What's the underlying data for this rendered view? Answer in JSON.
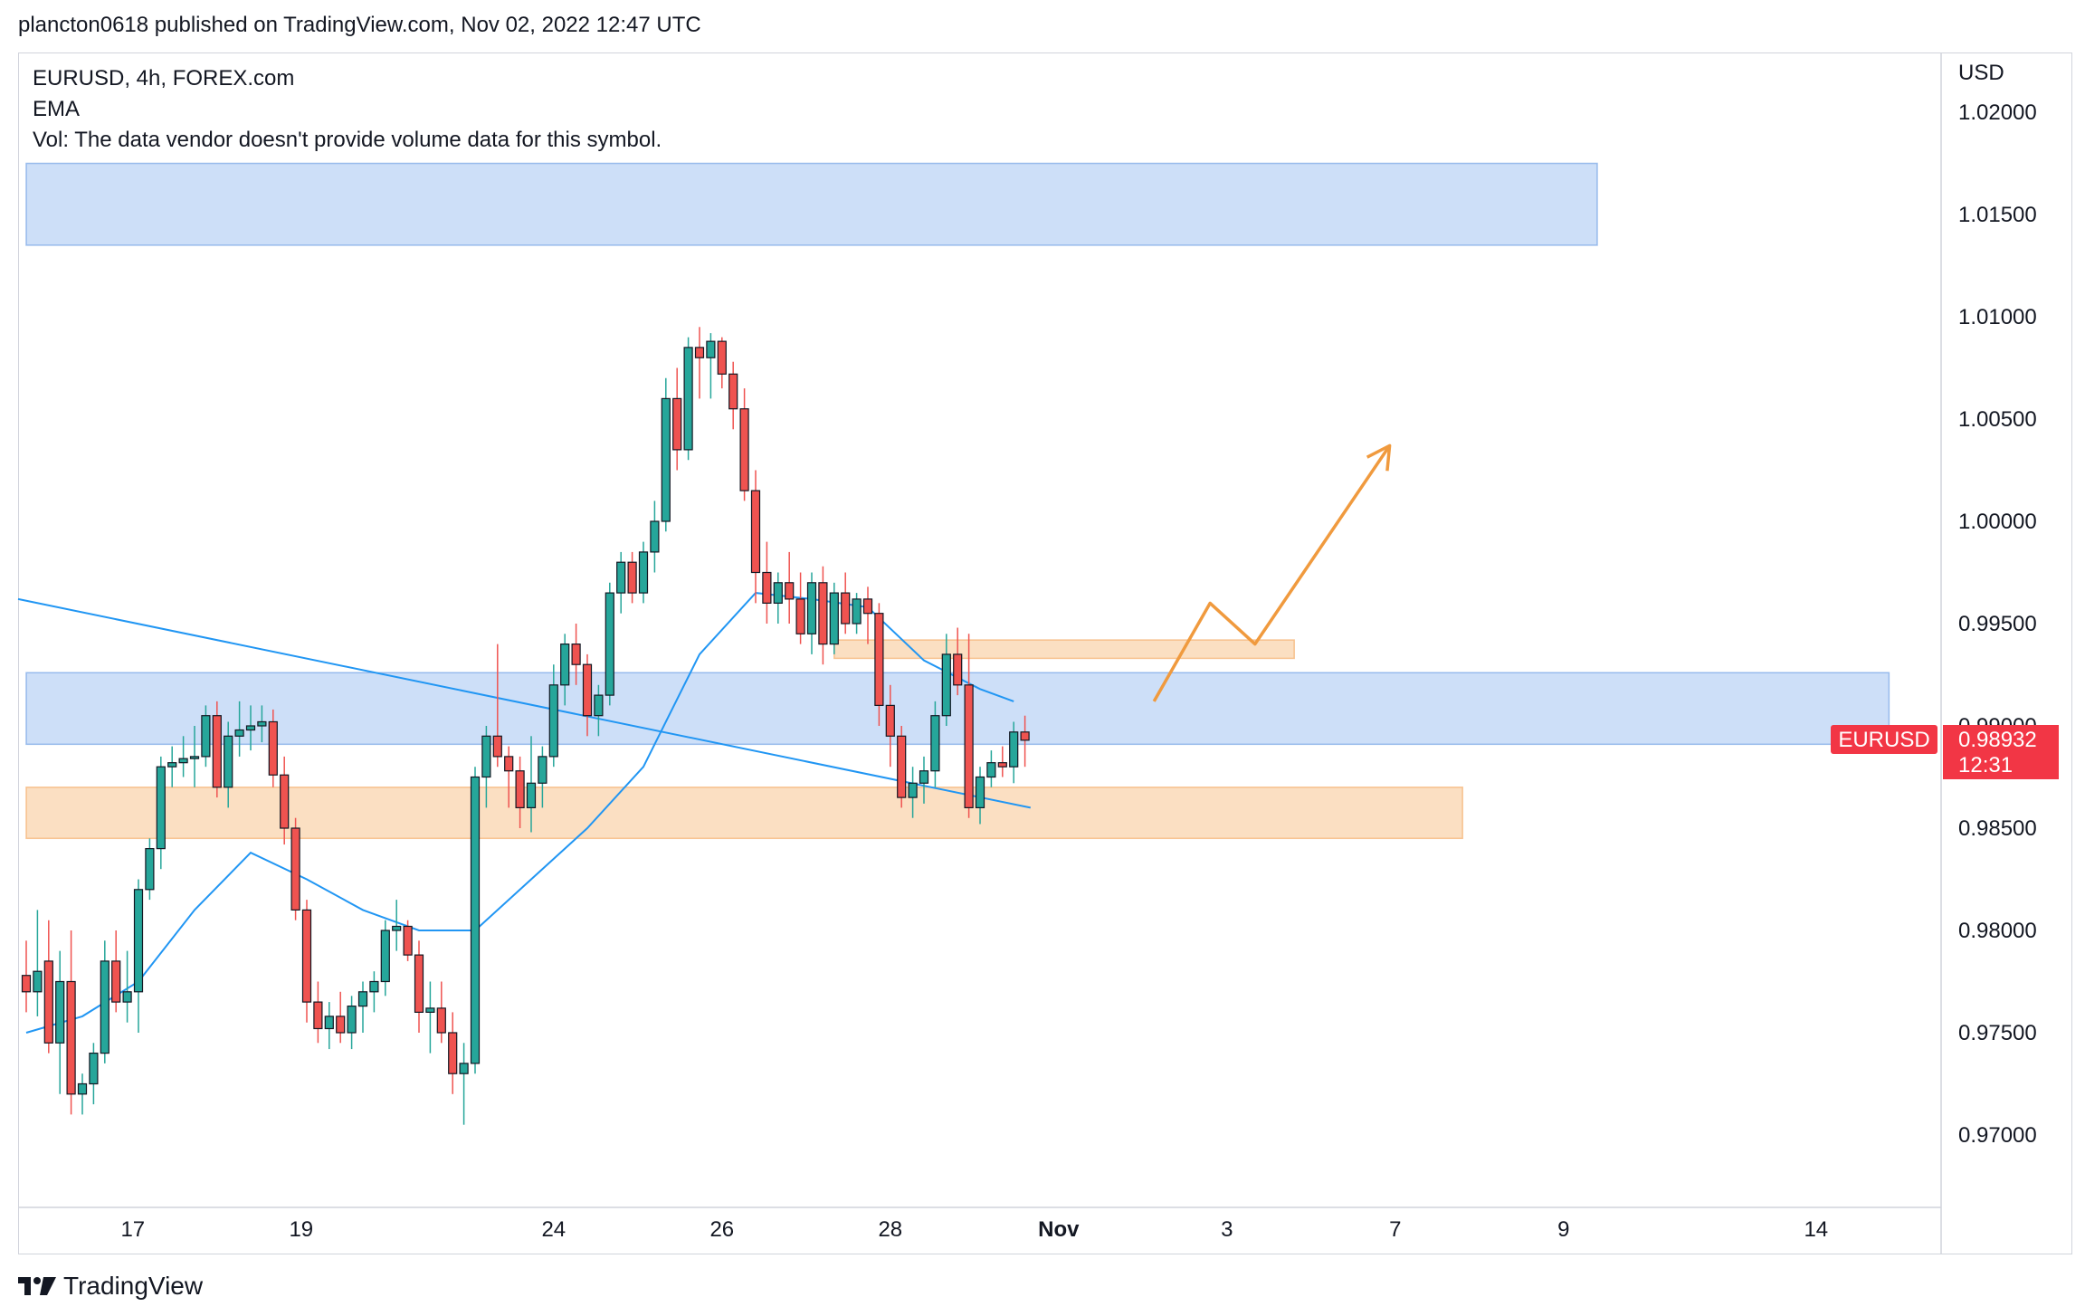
{
  "header": {
    "published_line": "plancton0618 published on TradingView.com, Nov 02, 2022 12:47 UTC"
  },
  "legend": {
    "symbol_line": "EURUSD, 4h, FOREX.com",
    "indicator": "EMA",
    "volume_note": "Vol: The data vendor doesn't provide volume data for this symbol."
  },
  "footer": {
    "brand": "TradingView"
  },
  "colors": {
    "up": "#26a69a",
    "down": "#ef5350",
    "ema": "#2196f3",
    "zone_blue": "rgba(144,183,240,0.45)",
    "zone_orange": "rgba(248,191,134,0.5)",
    "arrow": "#f09a3e",
    "label": "#f23645",
    "grid_border": "#d1d4dc"
  },
  "chart_data": {
    "type": "candlestick",
    "symbol": "EURUSD",
    "interval": "4h",
    "currency_label": "USD",
    "ylim": [
      0.967,
      1.022
    ],
    "y_ticks": [
      1.02,
      1.015,
      1.01,
      1.005,
      1.0,
      0.995,
      0.99,
      0.985,
      0.98,
      0.975,
      0.97
    ],
    "y_tick_labels": [
      "1.02000",
      "1.01500",
      "1.01000",
      "1.00500",
      "1.00000",
      "0.99500",
      "0.99000",
      "0.98500",
      "0.98000",
      "0.97500",
      "0.97000"
    ],
    "x_ticks": [
      {
        "label": "17",
        "bar": 9.5
      },
      {
        "label": "19",
        "bar": 24.5
      },
      {
        "label": "24",
        "bar": 47
      },
      {
        "label": "26",
        "bar": 62
      },
      {
        "label": "28",
        "bar": 77
      },
      {
        "label": "Nov",
        "bar": 92,
        "bold": true
      },
      {
        "label": "3",
        "bar": 107
      },
      {
        "label": "7",
        "bar": 122
      },
      {
        "label": "9",
        "bar": 137
      },
      {
        "label": "14",
        "bar": 159.5
      }
    ],
    "last_price": {
      "symbol": "EURUSD",
      "price": "0.98932",
      "countdown": "12:31",
      "value": 0.98932
    },
    "candles": [
      [
        0.9778,
        0.9795,
        0.976,
        0.977
      ],
      [
        0.977,
        0.981,
        0.9758,
        0.978
      ],
      [
        0.9785,
        0.9805,
        0.974,
        0.9745
      ],
      [
        0.9745,
        0.979,
        0.972,
        0.9775
      ],
      [
        0.9775,
        0.98,
        0.971,
        0.972
      ],
      [
        0.972,
        0.973,
        0.971,
        0.9725
      ],
      [
        0.9725,
        0.9745,
        0.9715,
        0.974
      ],
      [
        0.974,
        0.9795,
        0.9735,
        0.9785
      ],
      [
        0.9785,
        0.98,
        0.976,
        0.9765
      ],
      [
        0.9765,
        0.979,
        0.9755,
        0.977
      ],
      [
        0.977,
        0.9825,
        0.975,
        0.982
      ],
      [
        0.982,
        0.9845,
        0.9815,
        0.984
      ],
      [
        0.984,
        0.9885,
        0.983,
        0.988
      ],
      [
        0.988,
        0.989,
        0.987,
        0.9882
      ],
      [
        0.9882,
        0.9895,
        0.9875,
        0.9884
      ],
      [
        0.9884,
        0.99,
        0.987,
        0.9885
      ],
      [
        0.9885,
        0.991,
        0.988,
        0.9905
      ],
      [
        0.9905,
        0.9912,
        0.9865,
        0.987
      ],
      [
        0.987,
        0.9902,
        0.986,
        0.9895
      ],
      [
        0.9895,
        0.9912,
        0.9885,
        0.9898
      ],
      [
        0.9898,
        0.991,
        0.9888,
        0.99
      ],
      [
        0.99,
        0.991,
        0.9892,
        0.9902
      ],
      [
        0.9902,
        0.9908,
        0.987,
        0.9876
      ],
      [
        0.9876,
        0.9885,
        0.9842,
        0.985
      ],
      [
        0.985,
        0.9855,
        0.9805,
        0.981
      ],
      [
        0.981,
        0.9815,
        0.9755,
        0.9765
      ],
      [
        0.9765,
        0.9775,
        0.9745,
        0.9752
      ],
      [
        0.9752,
        0.9765,
        0.9742,
        0.9758
      ],
      [
        0.9758,
        0.977,
        0.9745,
        0.975
      ],
      [
        0.975,
        0.9768,
        0.9742,
        0.9763
      ],
      [
        0.9763,
        0.9775,
        0.975,
        0.977
      ],
      [
        0.977,
        0.978,
        0.976,
        0.9775
      ],
      [
        0.9775,
        0.9805,
        0.9768,
        0.98
      ],
      [
        0.98,
        0.9815,
        0.979,
        0.9802
      ],
      [
        0.9802,
        0.9805,
        0.9785,
        0.9788
      ],
      [
        0.9788,
        0.9795,
        0.975,
        0.976
      ],
      [
        0.976,
        0.9775,
        0.974,
        0.9762
      ],
      [
        0.9762,
        0.9775,
        0.9745,
        0.975
      ],
      [
        0.975,
        0.976,
        0.972,
        0.973
      ],
      [
        0.973,
        0.9745,
        0.9705,
        0.9735
      ],
      [
        0.9735,
        0.988,
        0.973,
        0.9875
      ],
      [
        0.9875,
        0.99,
        0.986,
        0.9895
      ],
      [
        0.9895,
        0.994,
        0.988,
        0.9885
      ],
      [
        0.9885,
        0.989,
        0.986,
        0.9878
      ],
      [
        0.9878,
        0.9885,
        0.985,
        0.986
      ],
      [
        0.986,
        0.9895,
        0.9848,
        0.9872
      ],
      [
        0.9872,
        0.989,
        0.986,
        0.9885
      ],
      [
        0.9885,
        0.993,
        0.988,
        0.992
      ],
      [
        0.992,
        0.9945,
        0.991,
        0.994
      ],
      [
        0.994,
        0.995,
        0.992,
        0.993
      ],
      [
        0.993,
        0.9935,
        0.9895,
        0.9905
      ],
      [
        0.9905,
        0.992,
        0.9895,
        0.9915
      ],
      [
        0.9915,
        0.997,
        0.991,
        0.9965
      ],
      [
        0.9965,
        0.9985,
        0.9955,
        0.998
      ],
      [
        0.998,
        0.9985,
        0.996,
        0.9965
      ],
      [
        0.9965,
        0.999,
        0.996,
        0.9985
      ],
      [
        0.9985,
        1.001,
        0.9975,
        1.0
      ],
      [
        1.0,
        1.007,
        0.9995,
        1.006
      ],
      [
        1.006,
        1.0075,
        1.0025,
        1.0035
      ],
      [
        1.0035,
        1.009,
        1.003,
        1.0085
      ],
      [
        1.0085,
        1.0095,
        1.006,
        1.008
      ],
      [
        1.008,
        1.0092,
        1.006,
        1.0088
      ],
      [
        1.0088,
        1.009,
        1.0065,
        1.0072
      ],
      [
        1.0072,
        1.0078,
        1.0045,
        1.0055
      ],
      [
        1.0055,
        1.0065,
        1.001,
        1.0015
      ],
      [
        1.0015,
        1.0025,
        0.996,
        0.9975
      ],
      [
        0.9975,
        0.999,
        0.995,
        0.996
      ],
      [
        0.996,
        0.9975,
        0.995,
        0.997
      ],
      [
        0.997,
        0.9985,
        0.995,
        0.9962
      ],
      [
        0.9962,
        0.9975,
        0.994,
        0.9945
      ],
      [
        0.9945,
        0.9975,
        0.9935,
        0.997
      ],
      [
        0.997,
        0.9978,
        0.993,
        0.994
      ],
      [
        0.994,
        0.997,
        0.9935,
        0.9965
      ],
      [
        0.9965,
        0.9975,
        0.9945,
        0.995
      ],
      [
        0.995,
        0.9965,
        0.9945,
        0.9962
      ],
      [
        0.9962,
        0.9968,
        0.994,
        0.9955
      ],
      [
        0.9955,
        0.996,
        0.99,
        0.991
      ],
      [
        0.991,
        0.992,
        0.988,
        0.9895
      ],
      [
        0.9895,
        0.99,
        0.986,
        0.9865
      ],
      [
        0.9865,
        0.988,
        0.9855,
        0.9872
      ],
      [
        0.9872,
        0.9885,
        0.9862,
        0.9878
      ],
      [
        0.9878,
        0.9912,
        0.987,
        0.9905
      ],
      [
        0.9905,
        0.9945,
        0.99,
        0.9935
      ],
      [
        0.9935,
        0.9948,
        0.9915,
        0.992
      ],
      [
        0.992,
        0.9945,
        0.9855,
        0.986
      ],
      [
        0.986,
        0.988,
        0.9852,
        0.9875
      ],
      [
        0.9875,
        0.9888,
        0.987,
        0.9882
      ],
      [
        0.9882,
        0.989,
        0.9875,
        0.988
      ],
      [
        0.988,
        0.9902,
        0.9872,
        0.9897
      ],
      [
        0.9897,
        0.9905,
        0.988,
        0.9893
      ]
    ],
    "ema": [
      [
        0,
        0.975
      ],
      [
        5,
        0.9758
      ],
      [
        10,
        0.9775
      ],
      [
        15,
        0.981
      ],
      [
        20,
        0.9838
      ],
      [
        25,
        0.9825
      ],
      [
        30,
        0.981
      ],
      [
        35,
        0.98
      ],
      [
        40,
        0.98
      ],
      [
        45,
        0.9825
      ],
      [
        50,
        0.985
      ],
      [
        55,
        0.988
      ],
      [
        60,
        0.9935
      ],
      [
        65,
        0.9965
      ],
      [
        70,
        0.9962
      ],
      [
        75,
        0.9958
      ],
      [
        80,
        0.9932
      ],
      [
        85,
        0.9918
      ],
      [
        88,
        0.9912
      ]
    ],
    "trendline": {
      "from": [
        0.0,
        0.9962
      ],
      "to": [
        89.5,
        0.986
      ]
    },
    "zones": [
      {
        "color_key": "zone_blue",
        "from_bar": 0,
        "to_bar": 140,
        "top": 1.0175,
        "bottom": 1.0135
      },
      {
        "color_key": "zone_blue",
        "from_bar": 0,
        "to_bar": 166,
        "top": 0.9926,
        "bottom": 0.9891
      },
      {
        "color_key": "zone_orange",
        "from_bar": 0,
        "to_bar": 128,
        "top": 0.987,
        "bottom": 0.9845
      },
      {
        "color_key": "zone_orange",
        "from_bar": 72,
        "to_bar": 113,
        "top": 0.9942,
        "bottom": 0.9933
      }
    ],
    "projection_path": [
      [
        100.5,
        0.9912
      ],
      [
        105.5,
        0.996
      ],
      [
        109.5,
        0.994
      ],
      [
        121.5,
        1.0037
      ]
    ]
  }
}
